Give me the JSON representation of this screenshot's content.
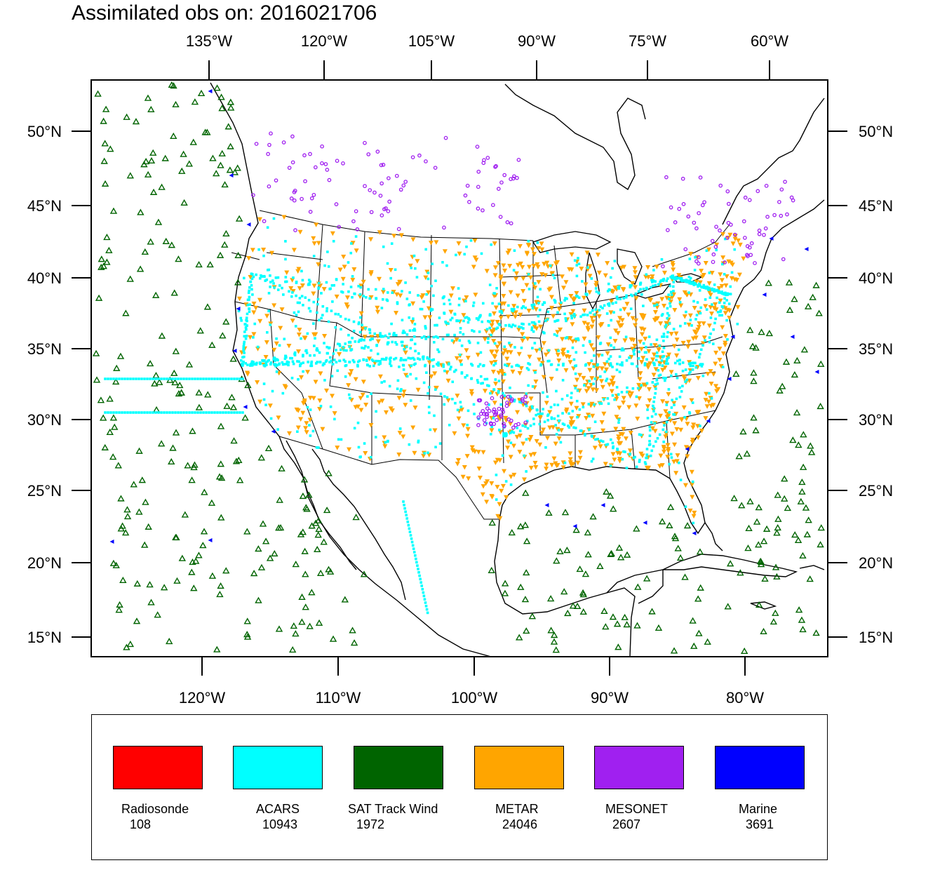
{
  "title": "Assimilated obs on: 2016021706",
  "top_axis": [
    "135°W",
    "120°W",
    "105°W",
    "90°W",
    "75°W",
    "60°W"
  ],
  "bottom_axis": [
    "120°W",
    "110°W",
    "100°W",
    "90°W",
    "80°W"
  ],
  "lat_labels": [
    "50°N",
    "45°N",
    "40°N",
    "35°N",
    "30°N",
    "25°N",
    "20°N",
    "15°N"
  ],
  "legend": [
    {
      "name": "Radiosonde",
      "count": "108",
      "color": "#ff0000"
    },
    {
      "name": "ACARS",
      "count": "10943",
      "color": "#00ffff"
    },
    {
      "name": "SAT Track Wind",
      "count": "1972",
      "color": "#006400"
    },
    {
      "name": "METAR",
      "count": "24046",
      "color": "#ffa500"
    },
    {
      "name": "MESONET",
      "count": "2607",
      "color": "#a020f0"
    },
    {
      "name": "Marine",
      "count": "3691",
      "color": "#0000ff"
    }
  ]
}
